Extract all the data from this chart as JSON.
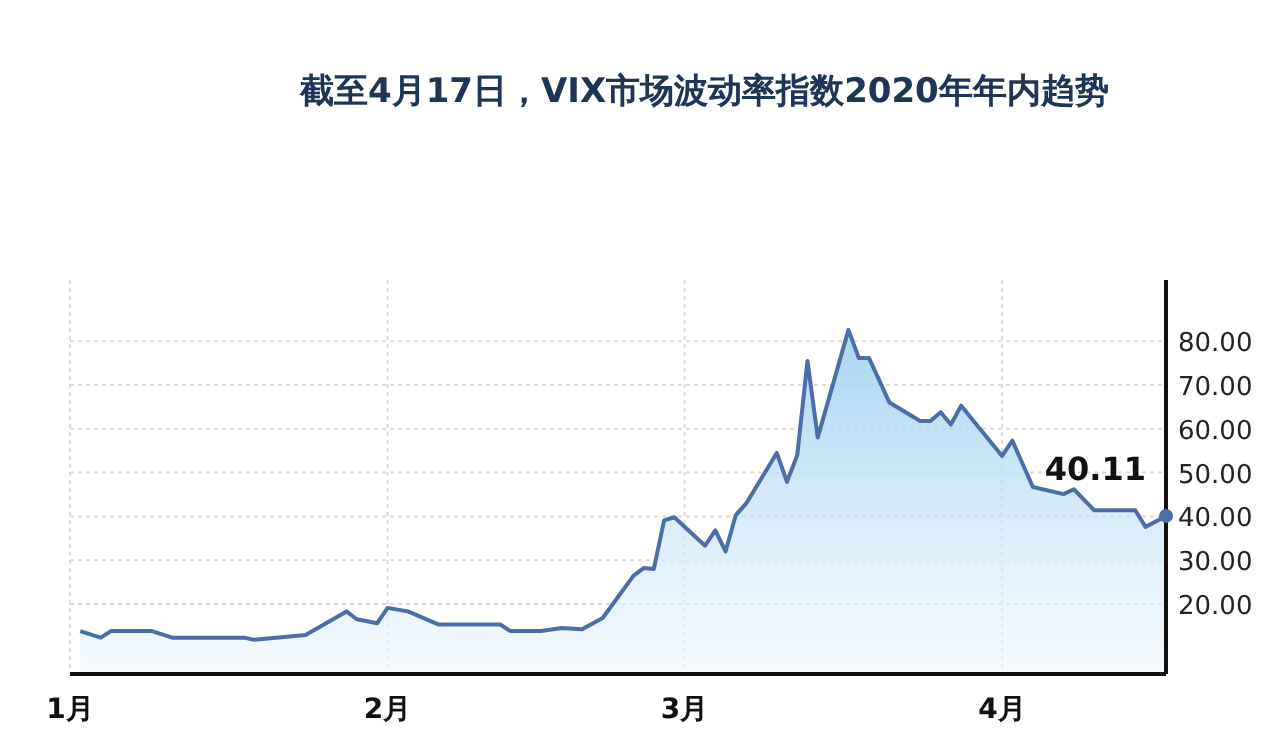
{
  "chart_data": {
    "type": "area",
    "title": "截至4月17日，VIX市场波动率指数2020年年内趋势",
    "x": [
      "2020-01-02",
      "2020-01-04",
      "2020-01-05",
      "2020-01-09",
      "2020-01-11",
      "2020-01-18",
      "2020-01-19",
      "2020-01-24",
      "2020-01-28",
      "2020-01-29",
      "2020-01-31",
      "2020-02-01",
      "2020-02-03",
      "2020-02-06",
      "2020-02-12",
      "2020-02-13",
      "2020-02-16",
      "2020-02-18",
      "2020-02-20",
      "2020-02-22",
      "2020-02-25",
      "2020-02-26",
      "2020-02-27",
      "2020-02-28",
      "2020-02-29",
      "2020-03-03",
      "2020-03-04",
      "2020-03-05",
      "2020-03-06",
      "2020-03-07",
      "2020-03-10",
      "2020-03-11",
      "2020-03-12",
      "2020-03-13",
      "2020-03-14",
      "2020-03-17",
      "2020-03-18",
      "2020-03-19",
      "2020-03-21",
      "2020-03-24",
      "2020-03-25",
      "2020-03-26",
      "2020-03-27",
      "2020-03-28",
      "2020-04-01",
      "2020-04-02",
      "2020-04-04",
      "2020-04-07",
      "2020-04-08",
      "2020-04-10",
      "2020-04-14",
      "2020-04-15",
      "2020-04-17"
    ],
    "values": [
      13.8,
      12.3,
      13.8,
      13.8,
      12.3,
      12.3,
      11.8,
      12.9,
      18.3,
      16.5,
      15.6,
      19.1,
      18.3,
      15.3,
      15.3,
      13.8,
      13.8,
      14.5,
      14.2,
      16.8,
      26.4,
      28.2,
      28,
      39.1,
      39.8,
      33.3,
      36.8,
      32,
      40.3,
      42.9,
      54.5,
      47.9,
      54,
      75.5,
      58,
      82.6,
      76.2,
      76.2,
      66,
      61.8,
      61.8,
      63.8,
      61,
      65.3,
      53.8,
      57.3,
      46.7,
      45.1,
      46.2,
      41.4,
      41.4,
      37.6,
      40.11
    ],
    "color": "#4a6ea8",
    "xlim": [
      "2020-01-01",
      "2020-04-17"
    ],
    "xticks": [
      {
        "value": "2020-01-01",
        "label": "1月"
      },
      {
        "value": "2020-02-01",
        "label": "2月"
      },
      {
        "value": "2020-03-01",
        "label": "3月"
      },
      {
        "value": "2020-04-01",
        "label": "4月"
      }
    ],
    "ylim": [
      4,
      94
    ],
    "yticks": [
      {
        "value": 20,
        "label": "20.00"
      },
      {
        "value": 30,
        "label": "30.00"
      },
      {
        "value": 40,
        "label": "40.00"
      },
      {
        "value": 50,
        "label": "50.00"
      },
      {
        "value": 60,
        "label": "60.00"
      },
      {
        "value": 70,
        "label": "70.00"
      },
      {
        "value": 80,
        "label": "80.00"
      }
    ],
    "grid": true,
    "annotations": [
      {
        "text": "40.11",
        "x": "2020-04-17",
        "y": 40.11
      }
    ]
  }
}
